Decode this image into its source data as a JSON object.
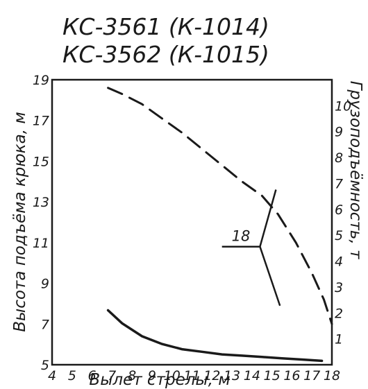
{
  "chart_data": {
    "type": "line",
    "title": [
      "КС-3561 (К-1014)",
      "КС-3562 (К-1015)"
    ],
    "xlabel": "Вылет стрелы, м",
    "ylabel_left": "Высота подъёма крюка, м",
    "ylabel_right": "Грузоподъёмность, т",
    "xlim": [
      4,
      18
    ],
    "ylim_left": [
      5,
      19
    ],
    "ylim_right": [
      0,
      11
    ],
    "x_ticks": [
      4,
      5,
      6,
      7,
      8,
      9,
      10,
      11,
      12,
      13,
      14,
      15,
      16,
      17,
      18
    ],
    "y_left_ticks": [
      5,
      7,
      9,
      11,
      13,
      15,
      17,
      19
    ],
    "y_right_ticks": [
      1,
      2,
      3,
      4,
      5,
      6,
      7,
      8,
      9,
      10
    ],
    "grid": false,
    "series": [
      {
        "style": "dashed",
        "axis": "left",
        "x": [
          6.8,
          7.5,
          8.5,
          9.5,
          10.5,
          11.5,
          12.5,
          13.5,
          14.5,
          15.3,
          16.2,
          17.0,
          17.6,
          18.0
        ],
        "y": [
          18.6,
          18.3,
          17.8,
          17.1,
          16.4,
          15.6,
          14.8,
          14.0,
          13.3,
          12.4,
          11.0,
          9.5,
          8.2,
          7.0
        ]
      },
      {
        "style": "solid",
        "axis": "right",
        "x": [
          6.8,
          7.5,
          8.5,
          9.5,
          10.5,
          11.5,
          12.5,
          13.5,
          14.5,
          15.5,
          16.5,
          17.5
        ],
        "y": [
          2.1,
          1.6,
          1.1,
          0.8,
          0.6,
          0.5,
          0.4,
          0.35,
          0.3,
          0.25,
          0.2,
          0.15
        ]
      }
    ],
    "annotations": [
      {
        "text": "18",
        "polyline": [
          [
            12.5,
            10.8
          ],
          [
            14.4,
            10.8
          ],
          [
            15.2,
            13.6
          ]
        ],
        "branch": [
          [
            14.4,
            10.8
          ],
          [
            15.4,
            7.9
          ]
        ]
      }
    ]
  }
}
